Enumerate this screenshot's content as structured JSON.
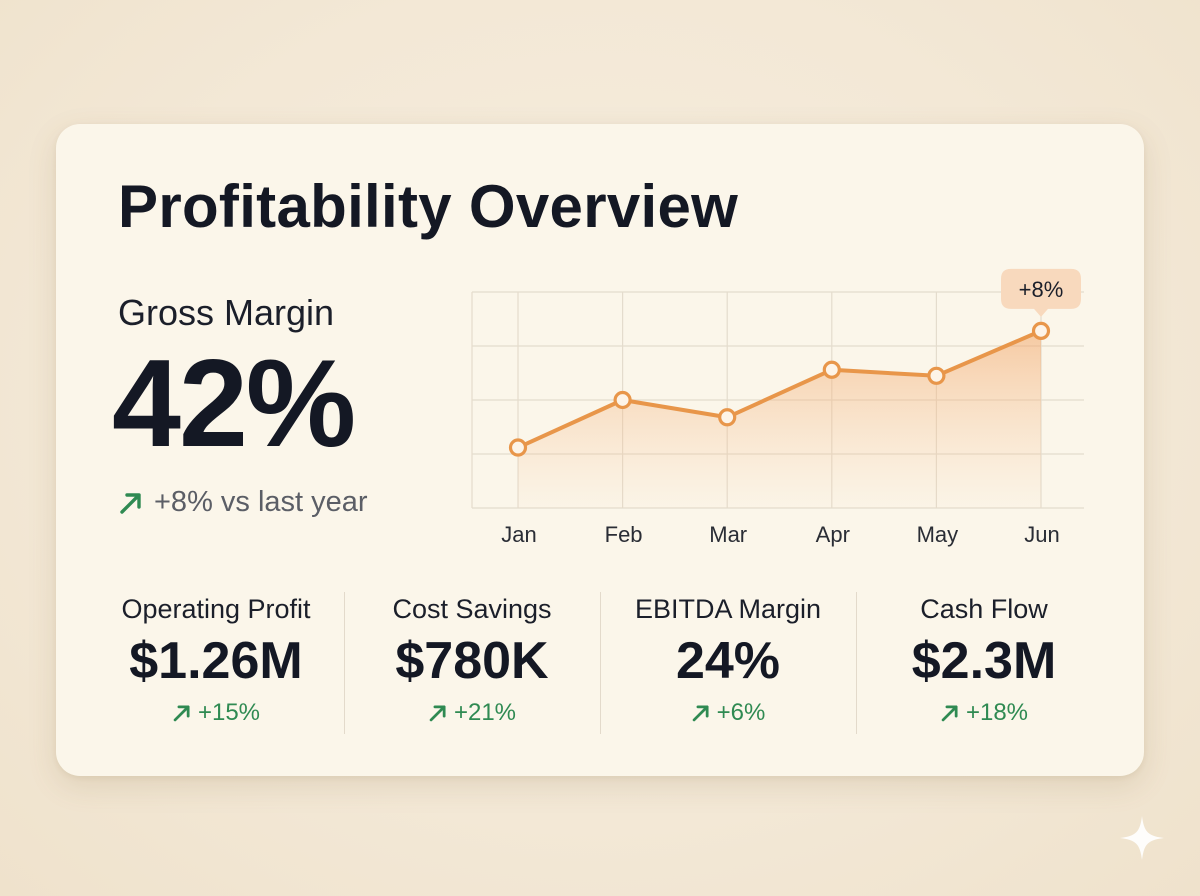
{
  "title": "Profitability Overview",
  "gross_margin": {
    "label": "Gross Margin",
    "value": "42%",
    "change": "+8% vs last year",
    "trend_icon": "arrow-up-right-icon"
  },
  "colors": {
    "accent": "#e8964a",
    "positive": "#2f8a52",
    "callout_bg": "#f8d9bd"
  },
  "chart_data": {
    "type": "area",
    "categories": [
      "Jan",
      "Feb",
      "Mar",
      "Apr",
      "May",
      "Jun"
    ],
    "series": [
      {
        "values": [
          32,
          37.5,
          35.5,
          41,
          40.3,
          45.5
        ]
      }
    ],
    "ylim": [
      25,
      50
    ],
    "grid": true,
    "annotations": [
      {
        "category": "Jun",
        "text": "+8%"
      }
    ]
  },
  "kpis": [
    {
      "label": "Operating Profit",
      "value": "$1.26M",
      "change": "+15%"
    },
    {
      "label": "Cost Savings",
      "value": "$780K",
      "change": "+21%"
    },
    {
      "label": "EBITDA Margin",
      "value": "24%",
      "change": "+6%"
    },
    {
      "label": "Cash Flow",
      "value": "$2.3M",
      "change": "+18%"
    }
  ]
}
